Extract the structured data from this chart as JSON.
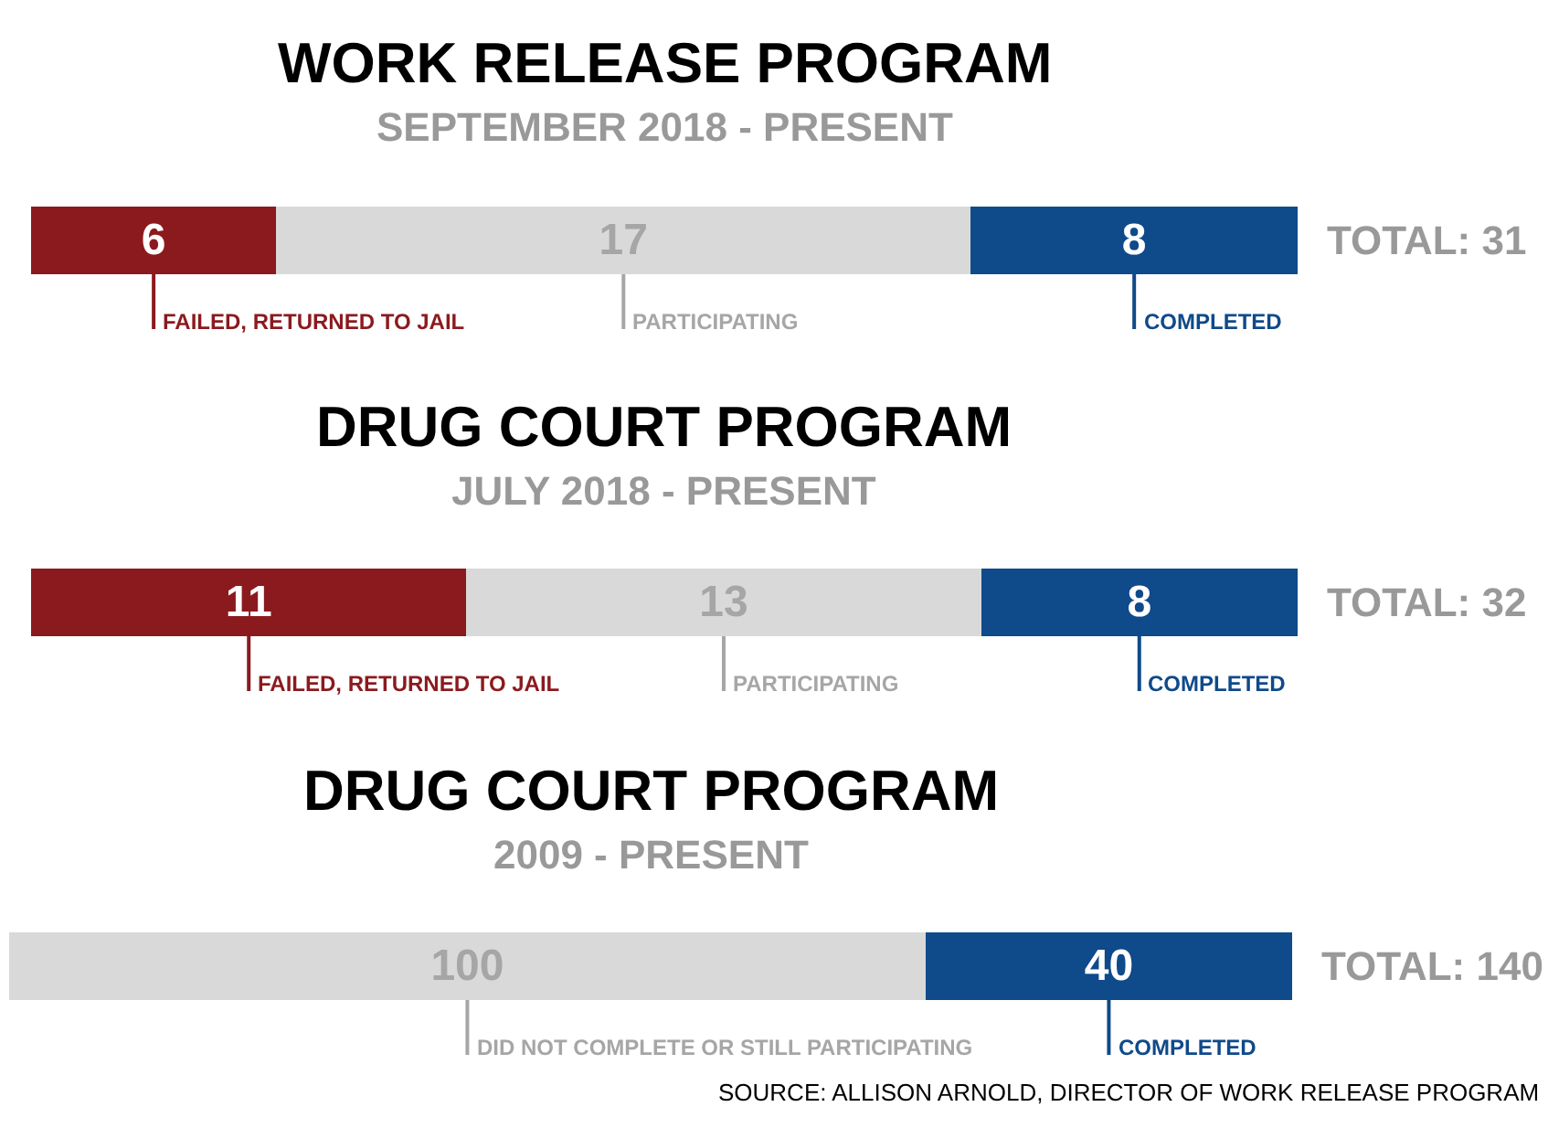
{
  "chart_data": [
    {
      "type": "bar",
      "orientation": "horizontal",
      "stacked": true,
      "title": "WORK RELEASE PROGRAM",
      "subtitle": "SEPTEMBER 2018 - PRESENT",
      "categories": [
        null
      ],
      "xlim": [
        0,
        31
      ],
      "tick_labels": false,
      "legend": false,
      "data_labels": true,
      "totals": [
        "TOTAL: 31"
      ],
      "series": [
        {
          "name": "FAILED, RETURNED TO JAIL",
          "color": "#8b1a1e",
          "values": [
            6
          ]
        },
        {
          "name": "PARTICIPATING",
          "color": "#d9d9d9",
          "values": [
            17
          ]
        },
        {
          "name": "COMPLETED",
          "color": "#0f4a8a",
          "values": [
            8
          ]
        }
      ]
    },
    {
      "type": "bar",
      "orientation": "horizontal",
      "stacked": true,
      "title": "DRUG COURT PROGRAM",
      "subtitle": "JULY 2018 - PRESENT",
      "categories": [
        null
      ],
      "xlim": [
        0,
        32
      ],
      "tick_labels": false,
      "legend": false,
      "data_labels": true,
      "totals": [
        "TOTAL: 32"
      ],
      "series": [
        {
          "name": "FAILED, RETURNED TO JAIL",
          "color": "#8b1a1e",
          "values": [
            11
          ]
        },
        {
          "name": "PARTICIPATING",
          "color": "#d9d9d9",
          "values": [
            13
          ]
        },
        {
          "name": "COMPLETED",
          "color": "#0f4a8a",
          "values": [
            8
          ]
        }
      ]
    },
    {
      "type": "bar",
      "orientation": "horizontal",
      "stacked": true,
      "title": "DRUG COURT PROGRAM",
      "subtitle": "2009 - PRESENT",
      "categories": [
        null
      ],
      "xlim": [
        0,
        140
      ],
      "tick_labels": false,
      "legend": false,
      "data_labels": true,
      "totals": [
        "TOTAL: 140"
      ],
      "annotations": [
        "SOURCE: ALLISON ARNOLD, DIRECTOR OF WORK RELEASE PROGRAM"
      ],
      "series": [
        {
          "name": "DID NOT COMPLETE OR STILL PARTICIPATING",
          "color": "#d9d9d9",
          "values": [
            100
          ]
        },
        {
          "name": "COMPLETED",
          "color": "#0f4a8a",
          "values": [
            40
          ]
        }
      ]
    }
  ]
}
